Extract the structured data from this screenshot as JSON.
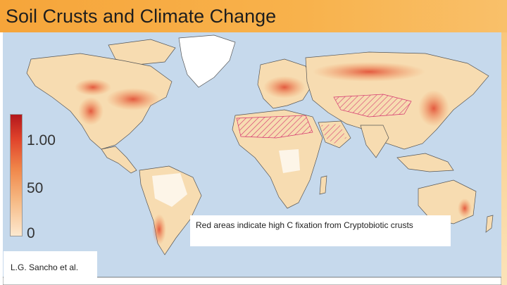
{
  "slide": {
    "title": "Soil Crusts and Climate Change"
  },
  "legend": {
    "labels": [
      "1.00",
      "50",
      "0"
    ],
    "colors": {
      "high": "#b3171c",
      "mid": "#f0874a",
      "low": "#fde9cf"
    }
  },
  "caption": {
    "text": "Red areas indicate high C fixation from Cryptobiotic crusts"
  },
  "credit": {
    "text": "L.G. Sancho et al."
  },
  "map": {
    "ocean_color": "#c6d9ec",
    "land_color": "#f7dcb1",
    "hatch_color": "#d4346f"
  }
}
